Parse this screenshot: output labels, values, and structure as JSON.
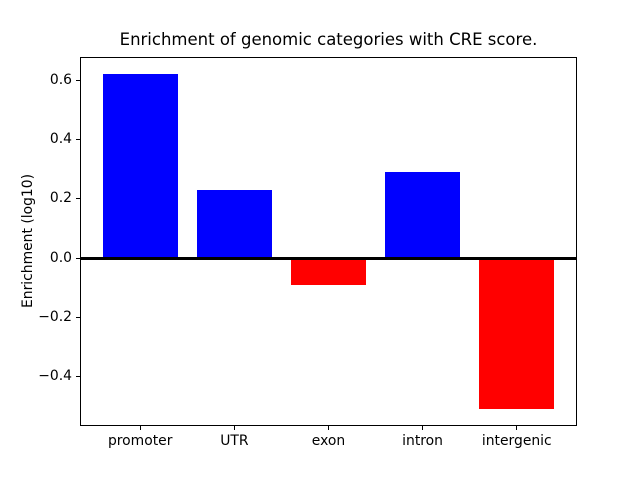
{
  "figure": {
    "background_color": "#ffffff",
    "text_color": "#000000",
    "spine_color": "#000000"
  },
  "chart_data": {
    "type": "bar",
    "title": "Enrichment of genomic categories with CRE score.",
    "xlabel": "",
    "ylabel": "Enrichment (log10)",
    "categories": [
      "promoter",
      "UTR",
      "exon",
      "intron",
      "intergenic"
    ],
    "values": [
      0.62,
      0.23,
      -0.09,
      0.29,
      -0.51
    ],
    "bar_colors": [
      "#0000ff",
      "#0000ff",
      "#ff0000",
      "#0000ff",
      "#ff0000"
    ],
    "positive_color": "#0000ff",
    "negative_color": "#ff0000",
    "yticks": [
      0.6,
      0.4,
      0.2,
      0.0,
      -0.2,
      -0.4
    ],
    "ytick_labels": [
      "0.6",
      "0.4",
      "0.2",
      "0.0",
      "−0.2",
      "−0.4"
    ],
    "ylim": [
      -0.566,
      0.678
    ],
    "xlim": [
      -0.64,
      4.64
    ],
    "bar_width_fraction": 0.8,
    "zero_line": true,
    "zero_line_color": "#000000",
    "grid": false,
    "legend": false
  }
}
